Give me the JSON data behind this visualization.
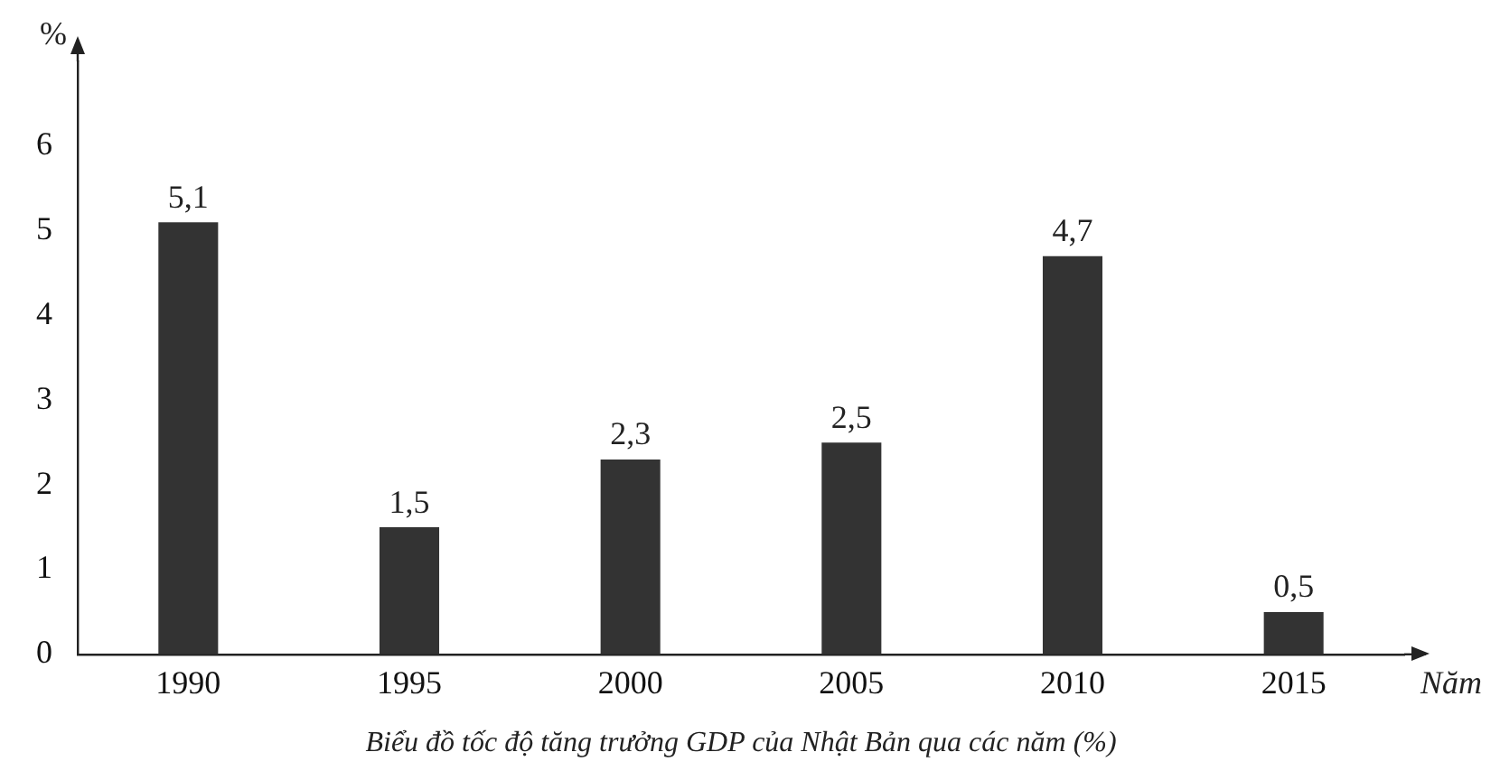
{
  "chart_data": {
    "type": "bar",
    "title": "Biểu đồ tốc độ tăng trưởng GDP của Nhật Bản qua các năm (%)",
    "xlabel": "Năm",
    "ylabel": "%",
    "categories": [
      "1990",
      "1995",
      "2000",
      "2005",
      "2010",
      "2015"
    ],
    "values": [
      5.1,
      1.5,
      2.3,
      2.5,
      4.7,
      0.5
    ],
    "value_labels": [
      "5,1",
      "1,5",
      "2,3",
      "2,5",
      "4,7",
      "0,5"
    ],
    "color": "#333333",
    "ylim": [
      0,
      7
    ],
    "yticks": [
      0,
      1,
      2,
      3,
      4,
      5,
      6
    ],
    "grid": false,
    "legend": false
  }
}
